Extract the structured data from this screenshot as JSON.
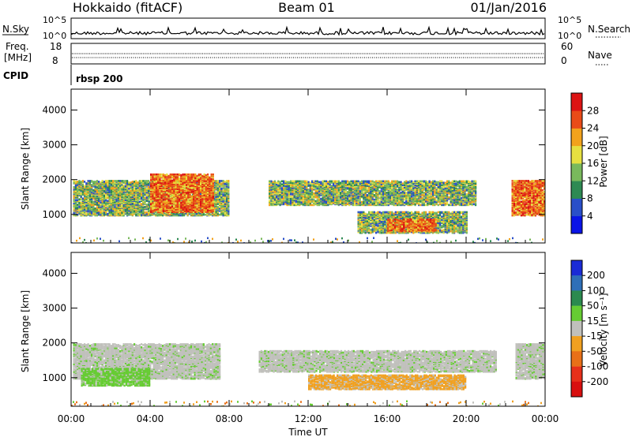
{
  "header": {
    "title_left": "Hokkaido (fitACF)",
    "title_center": "Beam 01",
    "title_right": "01/Jan/2016"
  },
  "top_panels": {
    "nsky_label": "N.Sky",
    "nsearch_label": "N.Search",
    "nsky_ticks": [
      "10^5",
      "10^0"
    ],
    "nsearch_ticks": [
      "10^5",
      "10^0"
    ],
    "freq_label_top": "Freq.",
    "freq_label_unit": "[MHz]",
    "freq_ticks": [
      "18",
      "8"
    ],
    "nave_label": "Nave",
    "nave_ticks": [
      "60",
      "0"
    ],
    "cpid_label": "CPID",
    "cpid_value": "rbsp 200"
  },
  "chart_data": [
    {
      "type": "heatmap",
      "name": "power",
      "ylabel": "Slant Range [km]",
      "xlabel": "",
      "xlim": [
        "00:00",
        "24:00"
      ],
      "ylim": [
        180,
        4600
      ],
      "y_ticks": [
        "1000",
        "2000",
        "3000",
        "4000"
      ],
      "colorbar": {
        "label": "Power [dB]",
        "ticks": [
          "4",
          "8",
          "12",
          "16",
          "20",
          "24",
          "28"
        ],
        "colors": [
          "#0a14e6",
          "#2a4fc9",
          "#2e8a53",
          "#79b95c",
          "#e6e040",
          "#f2a21c",
          "#e94b18",
          "#dc1414"
        ]
      },
      "regions": [
        {
          "t": [
            0.1,
            8.0
          ],
          "r": [
            1000,
            2000
          ],
          "level": "mid"
        },
        {
          "t": [
            4.0,
            7.2
          ],
          "r": [
            1100,
            2200
          ],
          "level": "high"
        },
        {
          "t": [
            10.0,
            20.5
          ],
          "r": [
            1300,
            2000
          ],
          "level": "mid"
        },
        {
          "t": [
            14.5,
            20.0
          ],
          "r": [
            500,
            1100
          ],
          "level": "mid"
        },
        {
          "t": [
            16.0,
            18.5
          ],
          "r": [
            550,
            900
          ],
          "level": "high"
        },
        {
          "t": [
            22.3,
            24.0
          ],
          "r": [
            1000,
            2000
          ],
          "level": "high"
        }
      ]
    },
    {
      "type": "heatmap",
      "name": "velocity",
      "ylabel": "Slant Range [km]",
      "xlabel": "Time UT",
      "xlim": [
        "00:00",
        "24:00"
      ],
      "ylim": [
        180,
        4600
      ],
      "y_ticks": [
        "1000",
        "2000",
        "3000",
        "4000"
      ],
      "x_ticks": [
        "00:00",
        "04:00",
        "08:00",
        "12:00",
        "16:00",
        "20:00",
        "00:00"
      ],
      "colorbar": {
        "label": "Velocity [m s⁻¹]",
        "ticks": [
          "200",
          "100",
          "50",
          "15",
          "-15",
          "-50",
          "-100",
          "-200"
        ],
        "colors": [
          "#1a2bd6",
          "#2f6fb8",
          "#2b8a4f",
          "#66cc33",
          "#c0c0bc",
          "#f0a020",
          "#e87018",
          "#e6301a",
          "#d80f0f"
        ]
      },
      "regions": [
        {
          "t": [
            0.1,
            7.5
          ],
          "r": [
            1000,
            2000
          ],
          "class": "ground"
        },
        {
          "t": [
            0.5,
            4.0
          ],
          "r": [
            800,
            1300
          ],
          "class": "green"
        },
        {
          "t": [
            9.5,
            21.5
          ],
          "r": [
            1200,
            1800
          ],
          "class": "ground"
        },
        {
          "t": [
            12.0,
            20.0
          ],
          "r": [
            700,
            1100
          ],
          "class": "orange"
        },
        {
          "t": [
            22.5,
            24.0
          ],
          "r": [
            1000,
            2000
          ],
          "class": "ground"
        }
      ]
    }
  ]
}
